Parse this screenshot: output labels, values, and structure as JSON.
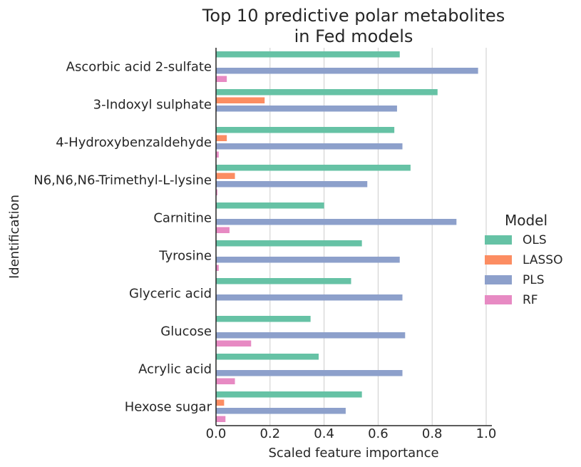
{
  "chart_data": {
    "type": "bar",
    "orientation": "horizontal",
    "title": "Top 10 predictive polar metabolites\nin Fed models",
    "xlabel": "Scaled feature importance",
    "ylabel": "Identification",
    "xlim": [
      0,
      1.02
    ],
    "xticks": [
      0.0,
      0.2,
      0.4,
      0.6,
      0.8,
      1.0
    ],
    "xtick_labels": [
      "0.0",
      "0.2",
      "0.4",
      "0.6",
      "0.8",
      "1.0"
    ],
    "grid": "vertical",
    "legend": {
      "title": "Model",
      "position": "right"
    },
    "categories": [
      "Ascorbic acid 2-sulfate",
      "3-Indoxyl sulphate",
      "4-Hydroxybenzaldehyde",
      "N6,N6,N6-Trimethyl-L-lysine",
      "Carnitine",
      "Tyrosine",
      "Glyceric acid",
      "Glucose",
      "Acrylic acid",
      "Hexose sugar"
    ],
    "series": [
      {
        "name": "OLS",
        "color": "#66c2a5",
        "values": [
          0.68,
          0.82,
          0.66,
          0.72,
          0.4,
          0.54,
          0.5,
          0.35,
          0.38,
          0.54
        ]
      },
      {
        "name": "LASSO",
        "color": "#fc8d62",
        "values": [
          0.0,
          0.18,
          0.04,
          0.07,
          0.0,
          0.0,
          0.0,
          0.0,
          0.0,
          0.03
        ]
      },
      {
        "name": "PLS",
        "color": "#8da0cb",
        "values": [
          0.97,
          0.67,
          0.69,
          0.56,
          0.89,
          0.68,
          0.69,
          0.7,
          0.69,
          0.48
        ]
      },
      {
        "name": "RF",
        "color": "#e78ac3",
        "values": [
          0.04,
          0.0,
          0.01,
          0.005,
          0.05,
          0.01,
          0.0,
          0.13,
          0.07,
          0.035
        ]
      }
    ]
  }
}
